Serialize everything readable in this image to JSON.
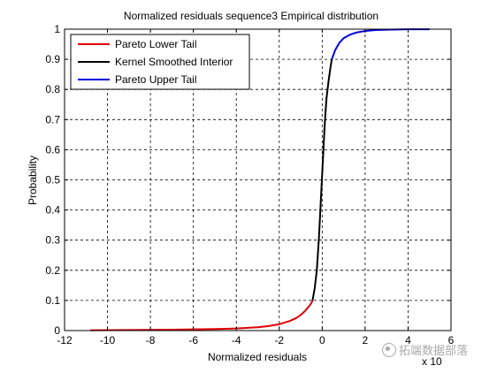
{
  "chart_data": {
    "type": "line",
    "title": "Normalized residuals sequence3 Empirical distribution",
    "xlabel": "Normalized residuals",
    "ylabel": "Probability",
    "x_exponent_label": "x 10",
    "xlim": [
      -12,
      6
    ],
    "ylim": [
      0,
      1
    ],
    "xticks": [
      -12,
      -10,
      -8,
      -6,
      -4,
      -2,
      0,
      2,
      4,
      6
    ],
    "yticks": [
      0,
      0.1,
      0.2,
      0.3,
      0.4,
      0.5,
      0.6,
      0.7,
      0.8,
      0.9,
      1
    ],
    "grid": true,
    "legend_position": "top-left",
    "series": [
      {
        "name": "Pareto Lower Tail",
        "color": "#e00000",
        "x": [
          -10.8,
          -9,
          -7,
          -5,
          -4,
          -3,
          -2.5,
          -2,
          -1.5,
          -1.2,
          -1.0,
          -0.8,
          -0.6,
          -0.5,
          -0.45
        ],
        "y": [
          0.001,
          0.002,
          0.003,
          0.005,
          0.007,
          0.011,
          0.015,
          0.021,
          0.032,
          0.042,
          0.052,
          0.065,
          0.082,
          0.092,
          0.1
        ]
      },
      {
        "name": "Kernel Smoothed Interior",
        "color": "#000000",
        "x": [
          -0.45,
          -0.35,
          -0.25,
          -0.15,
          -0.1,
          -0.05,
          0,
          0.05,
          0.1,
          0.15,
          0.2,
          0.3,
          0.4,
          0.45
        ],
        "y": [
          0.1,
          0.14,
          0.2,
          0.31,
          0.38,
          0.45,
          0.52,
          0.59,
          0.66,
          0.72,
          0.77,
          0.83,
          0.88,
          0.9
        ]
      },
      {
        "name": "Pareto Upper Tail",
        "color": "#0000e0",
        "x": [
          0.45,
          0.6,
          0.8,
          1.0,
          1.3,
          1.6,
          2.0,
          2.5,
          3.0,
          3.5,
          4.0,
          5.0
        ],
        "y": [
          0.9,
          0.93,
          0.955,
          0.97,
          0.982,
          0.989,
          0.994,
          0.997,
          0.998,
          0.999,
          0.9995,
          0.9998
        ]
      }
    ]
  },
  "watermark": {
    "text": "拓端数据部落",
    "icon": "wechat-icon"
  }
}
